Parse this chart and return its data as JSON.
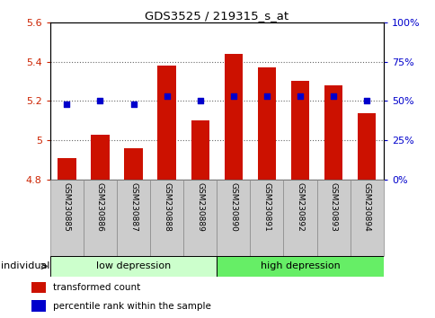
{
  "title": "GDS3525 / 219315_s_at",
  "samples": [
    "GSM230885",
    "GSM230886",
    "GSM230887",
    "GSM230888",
    "GSM230889",
    "GSM230890",
    "GSM230891",
    "GSM230892",
    "GSM230893",
    "GSM230894"
  ],
  "bar_values": [
    4.91,
    5.03,
    4.96,
    5.38,
    5.1,
    5.44,
    5.37,
    5.3,
    5.28,
    5.14
  ],
  "percentile_values": [
    5.185,
    5.2,
    5.185,
    5.225,
    5.2,
    5.225,
    5.225,
    5.225,
    5.225,
    5.2
  ],
  "ylim_left": [
    4.8,
    5.6
  ],
  "ylim_right": [
    0,
    100
  ],
  "yticks_left": [
    4.8,
    5.0,
    5.2,
    5.4,
    5.6
  ],
  "ytick_labels_left": [
    "4.8",
    "5",
    "5.2",
    "5.4",
    "5.6"
  ],
  "yticks_right": [
    0,
    25,
    50,
    75,
    100
  ],
  "ytick_labels_right": [
    "0%",
    "25%",
    "50%",
    "75%",
    "100%"
  ],
  "bar_color": "#cc1100",
  "dot_color": "#0000cc",
  "dot_size": 18,
  "group_labels": [
    "low depression",
    "high depression"
  ],
  "group_colors_light": [
    "#ccffcc",
    "#aaffaa"
  ],
  "group_colors_dark": [
    "#66ee66",
    "#44dd44"
  ],
  "individual_label": "individual",
  "legend_items": [
    {
      "label": "transformed count",
      "color": "#cc1100"
    },
    {
      "label": "percentile rank within the sample",
      "color": "#0000cc"
    }
  ],
  "bar_width": 0.55,
  "grid_color": "black",
  "grid_alpha": 0.6,
  "tick_color_left": "#cc2200",
  "tick_color_right": "#0000cc",
  "box_color": "#cccccc",
  "box_edge": "#888888",
  "spine_color": "black"
}
